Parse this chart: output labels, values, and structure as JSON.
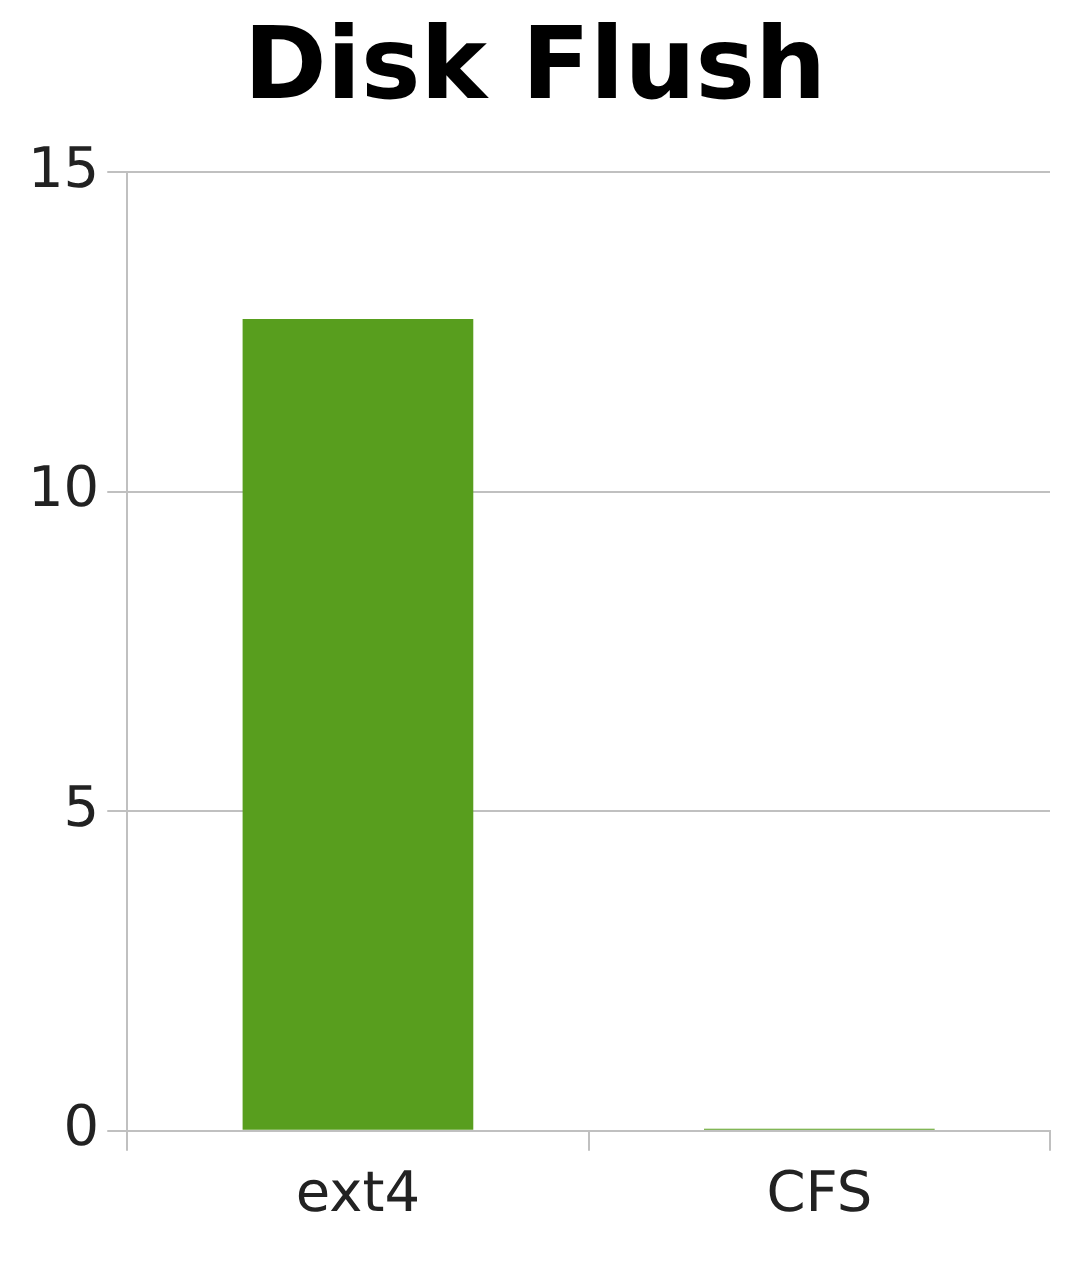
{
  "chart_data": {
    "type": "bar",
    "title": "Disk Flush",
    "categories": [
      "ext4",
      "CFS"
    ],
    "values": [
      12.7,
      0.03
    ],
    "color": "#589e1e",
    "ylim": [
      0,
      15
    ],
    "yticks": [
      0,
      5,
      10,
      15
    ],
    "grid": "y",
    "legend": false
  }
}
